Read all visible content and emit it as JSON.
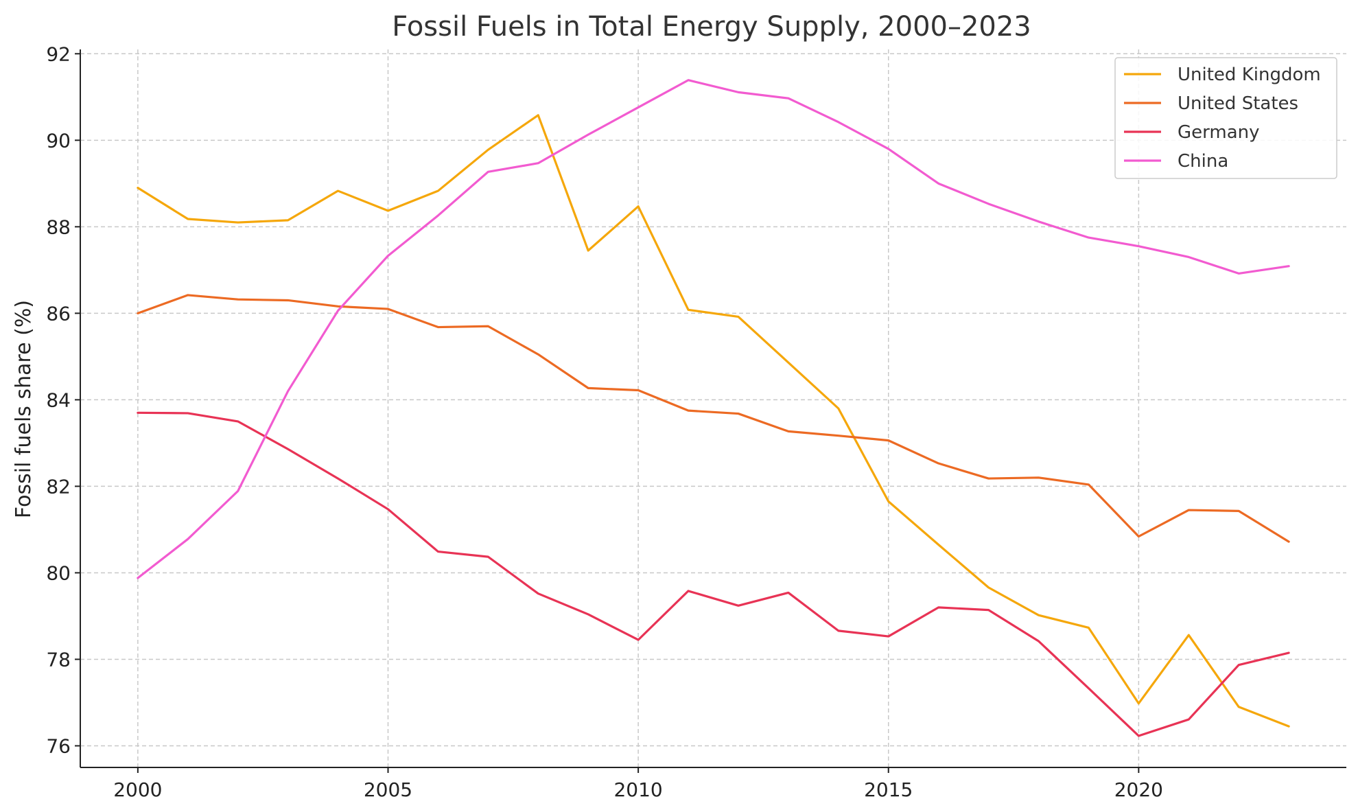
{
  "chart_data": {
    "type": "line",
    "title": "Fossil Fuels in Total Energy Supply, 2000–2023",
    "xlabel": "",
    "ylabel": "Fossil fuels share (%)",
    "x": [
      2000,
      2001,
      2002,
      2003,
      2004,
      2005,
      2006,
      2007,
      2008,
      2009,
      2010,
      2011,
      2012,
      2013,
      2014,
      2015,
      2016,
      2017,
      2018,
      2019,
      2020,
      2021,
      2022,
      2023
    ],
    "xticks": [
      2000,
      2005,
      2010,
      2015,
      2020
    ],
    "yticks": [
      76,
      78,
      80,
      82,
      84,
      86,
      88,
      90,
      92
    ],
    "xlim": [
      1998.85,
      2024.15
    ],
    "ylim": [
      75.5,
      92.1
    ],
    "grid": true,
    "legend_position": "top-right",
    "series": [
      {
        "name": "United Kingdom",
        "color": "#f5a70b",
        "values": [
          88.9,
          88.18,
          88.1,
          88.15,
          88.83,
          88.37,
          88.83,
          89.78,
          90.58,
          87.45,
          88.47,
          86.08,
          85.92,
          84.86,
          83.8,
          81.65,
          80.65,
          79.66,
          79.02,
          78.73,
          76.98,
          78.56,
          76.9,
          76.45
        ]
      },
      {
        "name": "United States",
        "color": "#ec6a23",
        "values": [
          86.0,
          86.42,
          86.32,
          86.3,
          86.16,
          86.1,
          85.68,
          85.7,
          85.05,
          84.27,
          84.22,
          83.75,
          83.68,
          83.27,
          83.17,
          83.06,
          82.53,
          82.18,
          82.2,
          82.04,
          80.84,
          81.45,
          81.43,
          80.72
        ]
      },
      {
        "name": "Germany",
        "color": "#e83355",
        "values": [
          83.7,
          83.69,
          83.5,
          82.86,
          82.18,
          81.47,
          80.49,
          80.37,
          79.52,
          79.04,
          78.45,
          79.58,
          79.24,
          79.54,
          78.66,
          78.53,
          79.2,
          79.14,
          78.42,
          77.33,
          76.23,
          76.61,
          77.87,
          78.15
        ]
      },
      {
        "name": "China",
        "color": "#f25bd0",
        "values": [
          79.88,
          80.78,
          81.89,
          84.2,
          86.06,
          87.33,
          88.26,
          89.27,
          89.47,
          90.13,
          90.76,
          91.39,
          91.11,
          90.97,
          90.42,
          89.8,
          89.0,
          88.53,
          88.12,
          87.75,
          87.55,
          87.3,
          86.92,
          87.09
        ]
      }
    ]
  }
}
